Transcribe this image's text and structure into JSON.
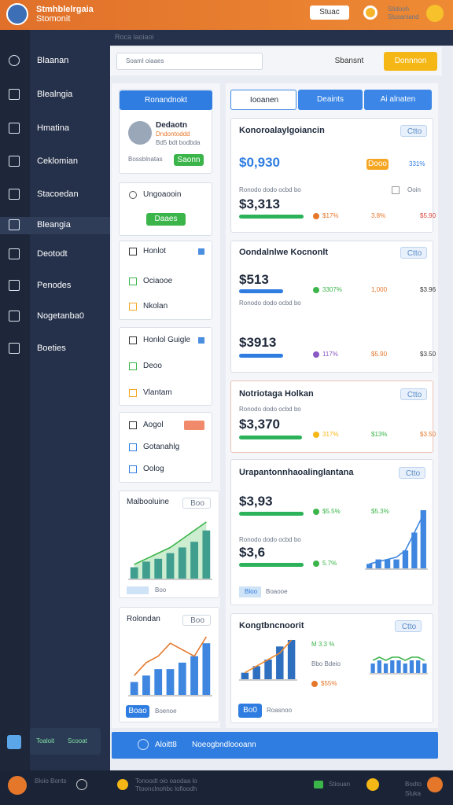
{
  "header": {
    "brand": "Stmhblelrgaia",
    "brand_sub": "Stomonit",
    "dropdown": "Stuac",
    "user": "Stidooh",
    "user_sub": "Slusaniand"
  },
  "breadcrumb": "Roca laoiaoi",
  "sidebar": {
    "items": [
      "Blaanan",
      "Blealngia",
      "Hmatina",
      "Ceklomian",
      "Stacoedan",
      "Bleangia",
      "Deotodt",
      "Penodes",
      "Nogetanba0",
      "Boeties"
    ],
    "footer": "Toaloit",
    "footer_action": "Scooat"
  },
  "toolbar": {
    "search": "Soaml oiaaes",
    "user_button": "Sbansnt",
    "action_button": "Donnnon"
  },
  "profile": {
    "button": "Ronandnokt",
    "name": "Dedaotn",
    "role": "Dndontoddd",
    "meta": "Bd5 bdt bodbda",
    "footer": "Bossblnatas",
    "action": "Saonn"
  },
  "program": {
    "title": "Ungoaooin",
    "button": "Daaes"
  },
  "checklists": [
    {
      "title": "Honlot",
      "items": [
        "Ociaooe",
        "Nkolan"
      ]
    },
    {
      "title": "Honlol Guigle",
      "items": [
        "Deoo",
        "Vlantam"
      ]
    },
    {
      "title": "Aogol",
      "items": [
        "Gotanahlg",
        "Oolog"
      ]
    }
  ],
  "charts": [
    {
      "title": "Malbooluine",
      "badge": "Boo",
      "legend": "Boo",
      "bars": [
        2,
        3,
        3.5,
        4.5,
        5.5,
        6.5,
        8.5
      ],
      "line": [
        2.5,
        3.5,
        4.5,
        5.5,
        7,
        8.5,
        10
      ]
    },
    {
      "title": "Rolondan",
      "badge": "Boo",
      "button": "Boao",
      "legend": "Boenoe",
      "bars": [
        2,
        3,
        4,
        4,
        5,
        6,
        8
      ],
      "line": [
        3,
        5,
        6,
        8,
        7,
        6,
        9
      ]
    },
    {
      "bars": [
        1,
        2,
        2,
        2,
        4,
        8,
        13
      ],
      "line": [
        1,
        1.5,
        2,
        2.5,
        4,
        8,
        12
      ]
    },
    {
      "bars": [
        1,
        2,
        3,
        5,
        6
      ],
      "line": [
        1,
        2,
        3,
        4,
        6
      ]
    },
    {
      "bars": [
        3,
        4,
        3,
        4,
        4,
        3,
        4,
        4,
        3
      ],
      "line": [
        4,
        5,
        4,
        5,
        5,
        4,
        5,
        5,
        4
      ]
    }
  ],
  "tabs": [
    "Iooanen",
    "Deaints",
    "Ai alnaten"
  ],
  "cards": [
    {
      "title": "Konoroalaylgoiancin",
      "badge": "Ctto",
      "value": "$0,930",
      "tag": "Dooo",
      "rate": "331%",
      "sub": "Ronodo dodo ocbd bo",
      "check": "Ooin",
      "value2": "$3,313",
      "stats": [
        "$17%",
        "3.8%",
        "$5.90"
      ]
    },
    {
      "title": "Oondalnlwe Kocnonlt",
      "badge": "Ctto",
      "value": "$513",
      "stats": [
        "3307%",
        "1,000",
        "$3.96"
      ],
      "sub": "Ronodo dodo ocbd bo",
      "value2": "$3913",
      "stats2": [
        "117%",
        "$5.90",
        "$3.50"
      ]
    },
    {
      "title": "Notriotaga Holkan",
      "badge": "Ctto",
      "sub": "Ronodo dodo ocbd bo",
      "value": "$3,370",
      "stats": [
        "317%",
        "$13%",
        "$3.50"
      ]
    },
    {
      "title": "Urapantonnhaoalinglantana",
      "badge": "Ctto",
      "value": "$3,93",
      "stats": [
        "$5.5%",
        "$5.3%"
      ],
      "sub": "Ronodo dodo ocbd bo",
      "value2": "$3,6",
      "stats2": [
        "5.7%"
      ],
      "legend": "Bloo",
      "legend2": "Boaooe"
    },
    {
      "title": "Kongtbncnoorit",
      "badge": "Ctto",
      "s1": "M 3.3 %",
      "s2": "Bbo Bdeio",
      "s3": "$55%",
      "button": "Bo0",
      "legend": "Roasnoo"
    }
  ],
  "banner": {
    "title": "Aloitt8",
    "text": "Noeogbndloooann"
  },
  "footer": {
    "name": "Bloio Bonts",
    "line1": "Tonoodt oio oaodaa lo",
    "line2": "Ttoonclnohbc lofioodh",
    "status": "Stiouan",
    "user": "Bodto Sluka"
  }
}
